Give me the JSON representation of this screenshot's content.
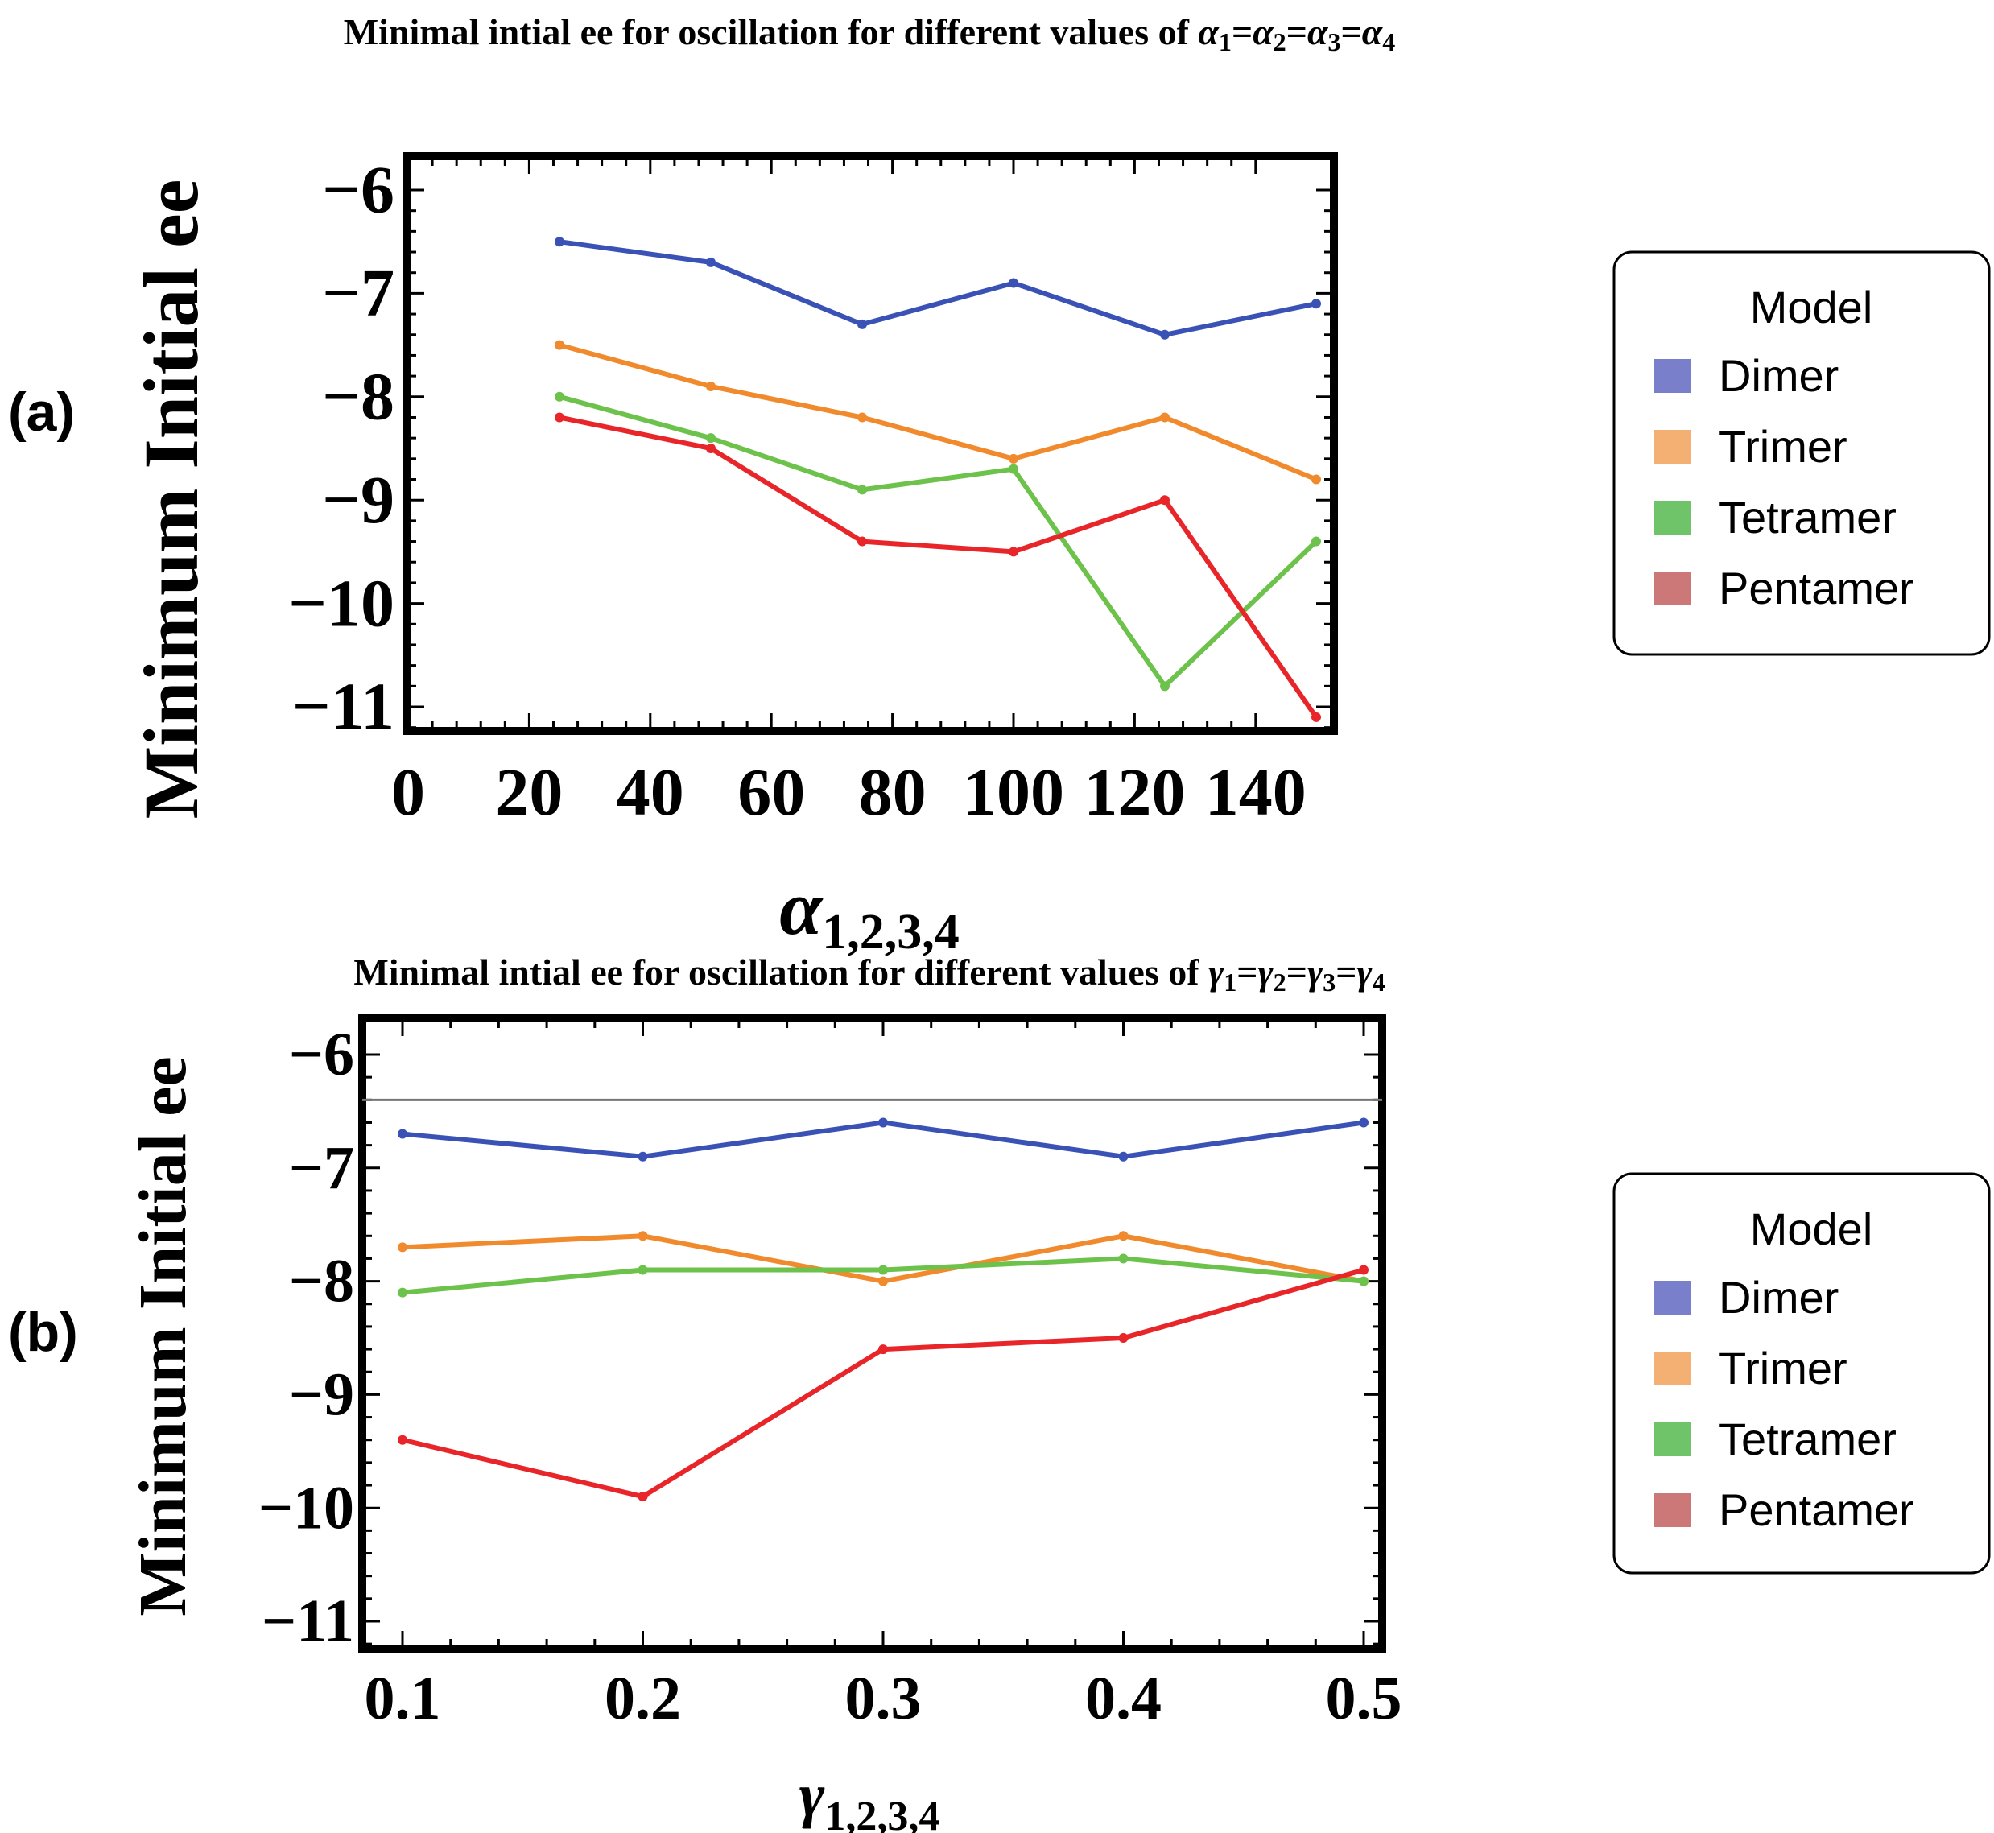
{
  "chart_data": [
    {
      "type": "line",
      "panel_label": "(a)",
      "title_prefix": "Minimal intial ee for oscillation for different values of ",
      "title_symbol": "α",
      "ylabel": "Minimum Initial ee",
      "xlabel_symbol": "α",
      "xlabel_subscript": "1,2,3,4",
      "x": [
        25,
        50,
        75,
        100,
        125,
        150
      ],
      "xlim": [
        0,
        150
      ],
      "ylim": [
        -11.2,
        -5.8
      ],
      "x_ticks": [
        0,
        20,
        40,
        60,
        80,
        100,
        120,
        140
      ],
      "x_tick_labels": [
        "0",
        "20",
        "40",
        "60",
        "80",
        "100",
        "120",
        "140"
      ],
      "y_ticks": [
        -6,
        -7,
        -8,
        -9,
        -10,
        -11
      ],
      "y_tick_labels": [
        "−6",
        "−7",
        "−8",
        "−9",
        "−10",
        "−11"
      ],
      "reference_line": null,
      "legend": {
        "title": "Model",
        "position": "right"
      },
      "series": [
        {
          "name": "Dimer",
          "color": "#3a52b5",
          "swatch": "#7a7fcc",
          "values": [
            -6.5,
            -6.7,
            -7.3,
            -6.9,
            -7.4,
            -7.1
          ]
        },
        {
          "name": "Trimer",
          "color": "#f08a2c",
          "swatch": "#f4b072",
          "values": [
            -7.5,
            -7.9,
            -8.2,
            -8.6,
            -8.2,
            -8.8
          ]
        },
        {
          "name": "Tetramer",
          "color": "#6cc24a",
          "swatch": "#6fc46a",
          "values": [
            -8.0,
            -8.4,
            -8.9,
            -8.7,
            -10.8,
            -9.4
          ]
        },
        {
          "name": "Pentamer",
          "color": "#e8262a",
          "swatch": "#cc7878",
          "values": [
            -8.2,
            -8.5,
            -9.4,
            -9.5,
            -9.0,
            -11.1
          ]
        }
      ]
    },
    {
      "type": "line",
      "panel_label": "(b)",
      "title_prefix": "Minimal intial ee for oscillation for different values of ",
      "title_symbol": "γ",
      "ylabel": "Minimum Initial ee",
      "xlabel_symbol": "γ",
      "xlabel_subscript": "1,2,3,4",
      "x": [
        0.1,
        0.2,
        0.3,
        0.4,
        0.5
      ],
      "xlim": [
        0.1,
        0.5
      ],
      "ylim": [
        -11.2,
        -5.8
      ],
      "x_ticks": [
        0.1,
        0.2,
        0.3,
        0.4,
        0.5
      ],
      "x_tick_labels": [
        "0.1",
        "0.2",
        "0.3",
        "0.4",
        "0.5"
      ],
      "y_ticks": [
        -6,
        -7,
        -8,
        -9,
        -10,
        -11
      ],
      "y_tick_labels": [
        "−6",
        "−7",
        "−8",
        "−9",
        "−10",
        "−11"
      ],
      "reference_line": -6.4,
      "legend": {
        "title": "Model",
        "position": "right"
      },
      "series": [
        {
          "name": "Dimer",
          "color": "#3a52b5",
          "swatch": "#7a7fcc",
          "values": [
            -6.7,
            -6.9,
            -6.6,
            -6.9,
            -6.6
          ]
        },
        {
          "name": "Trimer",
          "color": "#f08a2c",
          "swatch": "#f4b072",
          "values": [
            -7.7,
            -7.6,
            -8.0,
            -7.6,
            -8.0
          ]
        },
        {
          "name": "Tetramer",
          "color": "#6cc24a",
          "swatch": "#6fc46a",
          "values": [
            -8.1,
            -7.9,
            -7.9,
            -7.8,
            -8.0
          ]
        },
        {
          "name": "Pentamer",
          "color": "#e8262a",
          "swatch": "#cc7878",
          "values": [
            -9.4,
            -9.9,
            -8.6,
            -8.5,
            -7.9
          ]
        }
      ]
    }
  ]
}
